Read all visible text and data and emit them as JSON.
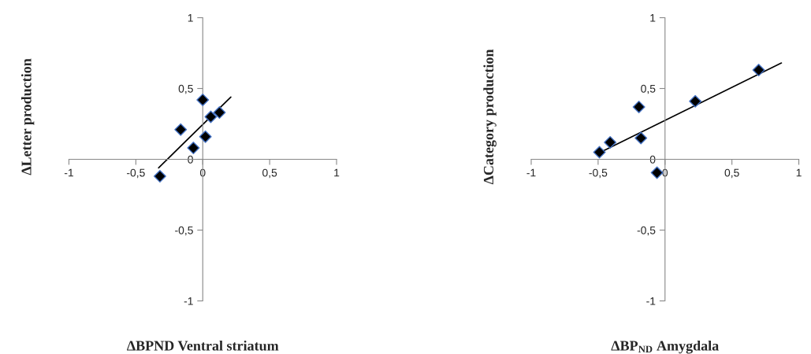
{
  "chart_data": [
    {
      "type": "scatter",
      "xlabel": "ΔBPND Ventral striatum",
      "ylabel": "ΔLetter production",
      "series": [
        {
          "type": "scatter",
          "color": "#000000",
          "marker": "diamond",
          "x": [
            0,
            0.06,
            0.125,
            -0.165,
            0.02,
            -0.07,
            -0.32
          ],
          "values": [
            0.42,
            0.3,
            0.33,
            0.21,
            0.16,
            0.08,
            -0.12
          ]
        },
        {
          "type": "line",
          "color": "#000000",
          "marker": "none",
          "line_style": "solid",
          "x": [
            -0.33,
            0.21
          ],
          "values": [
            -0.06,
            0.44
          ]
        }
      ],
      "xlim": [
        -1,
        1
      ],
      "ylim": [
        -1,
        1
      ],
      "xticks": [
        {
          "value": -1,
          "label": "-1"
        },
        {
          "value": -0.5,
          "label": "-0,5"
        },
        {
          "value": 0,
          "label": "0"
        },
        {
          "value": 0.5,
          "label": "0,5"
        },
        {
          "value": 1,
          "label": "1"
        }
      ],
      "yticks": [
        {
          "value": -1,
          "label": "-1"
        },
        {
          "value": -0.5,
          "label": "-0,5"
        },
        {
          "value": 0,
          "label": "0"
        },
        {
          "value": 0.5,
          "label": "0,5"
        },
        {
          "value": 1,
          "label": "1"
        }
      ],
      "grid": false,
      "legend": false
    },
    {
      "type": "scatter",
      "xlabel": "ΔBP$_{ND}$ Amygdala",
      "ylabel": "ΔCategory production",
      "series": [
        {
          "type": "scatter",
          "color": "#000000",
          "marker": "diamond",
          "x": [
            -0.49,
            -0.41,
            -0.195,
            -0.18,
            -0.06,
            0.226,
            0.7
          ],
          "values": [
            0.05,
            0.12,
            0.37,
            0.15,
            -0.095,
            0.41,
            0.63
          ]
        },
        {
          "type": "line",
          "color": "#000000",
          "marker": "none",
          "line_style": "solid",
          "x": [
            -0.47,
            0.87
          ],
          "values": [
            0.055,
            0.68
          ]
        }
      ],
      "xlim": [
        -1,
        1
      ],
      "ylim": [
        -1,
        1
      ],
      "xticks": [
        {
          "value": -1,
          "label": "-1"
        },
        {
          "value": -0.5,
          "label": "-0,5"
        },
        {
          "value": 0,
          "label": "0"
        },
        {
          "value": 0.5,
          "label": "0,5"
        },
        {
          "value": 1,
          "label": "1"
        }
      ],
      "yticks": [
        {
          "value": -1,
          "label": "-1"
        },
        {
          "value": -0.5,
          "label": "-0,5"
        },
        {
          "value": 0,
          "label": "0"
        },
        {
          "value": 0.5,
          "label": "0,5"
        },
        {
          "value": 1,
          "label": "1"
        }
      ],
      "grid": false,
      "legend": false
    }
  ]
}
